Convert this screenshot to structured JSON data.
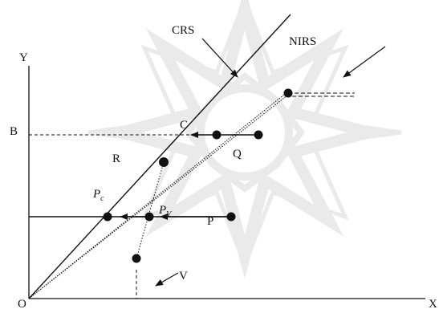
{
  "labels": {
    "y_axis": "Y",
    "x_axis": "X",
    "origin": "O",
    "b": "B",
    "c": "C",
    "r": "R",
    "q": "Q",
    "p": "P",
    "v": "V",
    "crs": "CRS",
    "nirs": "NIRS",
    "pc_main": "P",
    "pc_sub": "c",
    "pv_main": "P",
    "pv_sub": "V"
  },
  "colors": {
    "ink": "#111111",
    "watermark": "#d9d9d9"
  }
}
